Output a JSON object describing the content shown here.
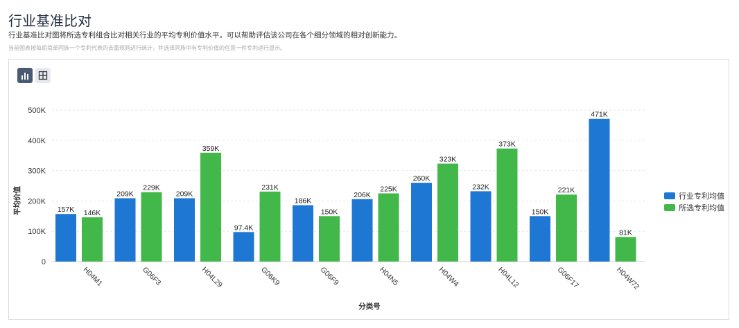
{
  "header": {
    "title": "行业基准比对",
    "description": "行业基准比对图将所选专利组合比对相关行业的平均专利价值水平。可以帮助评估该公司在各个细分领域的相对创新能力。",
    "note": "当前图表按每组简单同族一个专利代表的去重规则进行统计，并选择同族中有专利价值的任意一件专利进行显示。"
  },
  "toolbar": {
    "buttons": [
      {
        "icon": "bar-chart-icon",
        "active": true
      },
      {
        "icon": "table-icon",
        "active": false
      }
    ]
  },
  "chart_data": {
    "type": "bar",
    "xlabel": "分类号",
    "ylabel": "平均价值",
    "categories": [
      "H04M1",
      "G06F3",
      "H04L29",
      "G06K9",
      "G06F9",
      "H04N5",
      "H04W4",
      "H04L12",
      "G06F17",
      "H04W72"
    ],
    "series": [
      {
        "name": "行业专利均值",
        "color": "#1f77d4",
        "values": [
          157000,
          209000,
          209000,
          97400,
          186000,
          206000,
          260000,
          232000,
          150000,
          471000
        ],
        "labels": [
          "157K",
          "209K",
          "209K",
          "97.4K",
          "186K",
          "206K",
          "260K",
          "232K",
          "150K",
          "471K"
        ]
      },
      {
        "name": "所选专利均值",
        "color": "#43b84a",
        "values": [
          146000,
          229000,
          359000,
          231000,
          150000,
          225000,
          323000,
          373000,
          221000,
          81000
        ],
        "labels": [
          "146K",
          "229K",
          "359K",
          "231K",
          "150K",
          "225K",
          "323K",
          "373K",
          "221K",
          "81K"
        ]
      }
    ],
    "ylim": [
      0,
      500000
    ],
    "yticks": [
      0,
      100000,
      200000,
      300000,
      400000,
      500000
    ],
    "ytick_labels": [
      "0",
      "100K",
      "200K",
      "300K",
      "400K",
      "500K"
    ],
    "grid": true,
    "legend": "right"
  }
}
